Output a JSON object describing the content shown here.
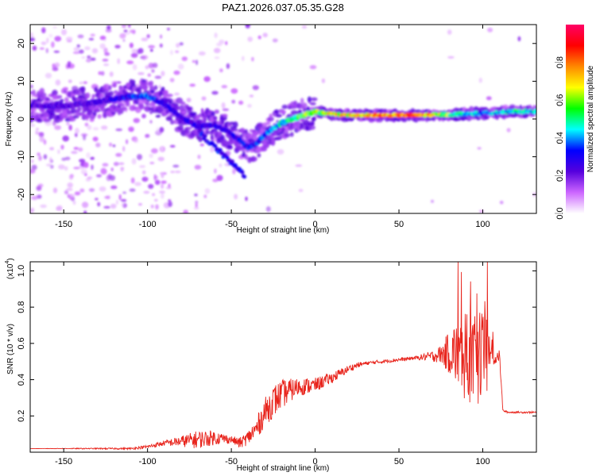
{
  "title": "PAZ1.2026.037.05.35.G28",
  "chart_data": [
    {
      "type": "heatmap",
      "name": "spectrogram",
      "xlabel": "Height of straight line (km)",
      "ylabel": "Frequency (Hz)",
      "xlim": [
        -170,
        132
      ],
      "ylim": [
        -25,
        25
      ],
      "xticks": [
        -150,
        -100,
        -50,
        0,
        50,
        100
      ],
      "yticks": [
        -20,
        -10,
        0,
        10,
        20
      ],
      "colorbar": {
        "label": "Normalized spectral amplitude",
        "range": [
          0,
          1
        ],
        "ticks": [
          0.0,
          0.2,
          0.4,
          0.6,
          0.8
        ],
        "tick_labels": [
          "0.0",
          "0.2",
          "0.4",
          "0.6",
          "0.8"
        ],
        "colormap": [
          "#ffffff",
          "#cc66ff",
          "#5500dd",
          "#0000ff",
          "#00ffff",
          "#00ff00",
          "#ffff00",
          "#ff8800",
          "#ff0000",
          "#ff0066"
        ]
      },
      "ridge": {
        "x": [
          -165,
          -150,
          -130,
          -110,
          -100,
          -90,
          -80,
          -70,
          -60,
          -50,
          -40,
          -35,
          -30,
          -20,
          -10,
          0,
          5,
          20,
          40,
          60,
          80,
          100,
          120,
          132
        ],
        "y": [
          3.5,
          3.5,
          4.5,
          6.0,
          6.0,
          4.0,
          0.5,
          -2.0,
          -1.5,
          -4.0,
          -7.5,
          -6.5,
          -4.0,
          -1.0,
          0.5,
          2.0,
          1.5,
          1.0,
          1.0,
          1.0,
          1.2,
          1.5,
          2.0,
          2.0
        ],
        "amplitude": [
          0.25,
          0.25,
          0.25,
          0.35,
          0.4,
          0.3,
          0.3,
          0.3,
          0.3,
          0.3,
          0.35,
          0.35,
          0.4,
          0.5,
          0.6,
          0.6,
          0.7,
          0.8,
          0.9,
          0.9,
          0.6,
          0.4,
          0.5,
          0.5
        ]
      }
    },
    {
      "type": "line",
      "name": "snr",
      "xlabel": "Height of straight line (km)",
      "ylabel": "SNR (10 * v/v)",
      "multiplier_label": "(x10",
      "multiplier_exp": "4",
      "multiplier_close": ")",
      "xlim": [
        -170,
        132
      ],
      "ylim": [
        0,
        1.05
      ],
      "xticks": [
        -150,
        -100,
        -50,
        0,
        50,
        100
      ],
      "yticks": [
        0.2,
        0.4,
        0.6,
        0.8,
        1.0
      ],
      "ytick_labels": [
        "0.2",
        "0.4",
        "0.6",
        "0.8",
        "1.0"
      ],
      "color": "#e8241c",
      "series": [
        {
          "name": "SNR",
          "x": [
            -170,
            -110,
            -100,
            -90,
            -80,
            -70,
            -60,
            -50,
            -45,
            -40,
            -35,
            -30,
            -25,
            -20,
            -10,
            0,
            10,
            20,
            25,
            30,
            50,
            60,
            70,
            75,
            80,
            85,
            90,
            95,
            100,
            103,
            107,
            110,
            112,
            115,
            120,
            130,
            132
          ],
          "y": [
            0.02,
            0.02,
            0.03,
            0.05,
            0.06,
            0.07,
            0.08,
            0.07,
            0.05,
            0.08,
            0.13,
            0.22,
            0.28,
            0.32,
            0.36,
            0.37,
            0.41,
            0.46,
            0.48,
            0.49,
            0.51,
            0.52,
            0.53,
            0.54,
            0.55,
            0.55,
            0.52,
            0.5,
            0.52,
            0.55,
            0.53,
            0.53,
            0.23,
            0.22,
            0.22,
            0.22,
            0.22
          ],
          "noise": [
            0.0,
            0.005,
            0.01,
            0.015,
            0.03,
            0.05,
            0.04,
            0.02,
            0.03,
            0.04,
            0.06,
            0.08,
            0.09,
            0.08,
            0.05,
            0.04,
            0.03,
            0.02,
            0.015,
            0.01,
            0.01,
            0.01,
            0.03,
            0.05,
            0.12,
            0.2,
            0.25,
            0.25,
            0.25,
            0.2,
            0.05,
            0.03,
            0.005,
            0.005,
            0.005,
            0.005,
            0.005
          ]
        }
      ]
    }
  ]
}
